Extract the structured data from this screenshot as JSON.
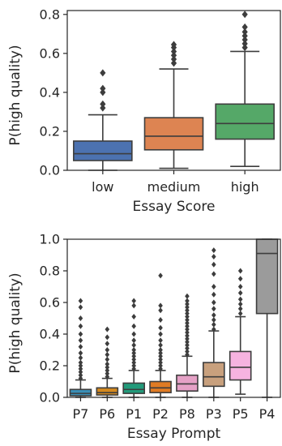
{
  "chart_data": [
    {
      "type": "box",
      "xlabel": "Essay Score",
      "ylabel": "P(high quality)",
      "ylim": [
        0,
        0.82
      ],
      "yticks": [
        "0.0",
        "0.2",
        "0.4",
        "0.6",
        "0.8"
      ],
      "ytick_values": [
        0,
        0.2,
        0.4,
        0.6,
        0.8
      ],
      "grid": false,
      "categories": [
        "low",
        "medium",
        "high"
      ],
      "colors": [
        "#4c72b0",
        "#dd8452",
        "#55a868"
      ],
      "boxes": [
        {
          "whisker_low": 0.0,
          "q1": 0.05,
          "median": 0.085,
          "q3": 0.15,
          "whisker_high": 0.285,
          "outliers": [
            0.32,
            0.34,
            0.4,
            0.42,
            0.5
          ]
        },
        {
          "whisker_low": 0.01,
          "q1": 0.105,
          "median": 0.175,
          "q3": 0.27,
          "whisker_high": 0.52,
          "outliers": [
            0.55,
            0.57,
            0.59,
            0.61,
            0.63,
            0.645
          ]
        },
        {
          "whisker_low": 0.02,
          "q1": 0.16,
          "median": 0.24,
          "q3": 0.34,
          "whisker_high": 0.61,
          "outliers": [
            0.63,
            0.65,
            0.67,
            0.69,
            0.71,
            0.735,
            0.8
          ]
        }
      ]
    },
    {
      "type": "box",
      "xlabel": "Essay Prompt",
      "ylabel": "P(high quality)",
      "ylim": [
        0,
        1.0
      ],
      "yticks": [
        "0.0",
        "0.2",
        "0.4",
        "0.6",
        "0.8",
        "1.0"
      ],
      "ytick_values": [
        0,
        0.2,
        0.4,
        0.6,
        0.8,
        1.0
      ],
      "grid": false,
      "categories": [
        "P7",
        "P6",
        "P1",
        "P2",
        "P8",
        "P3",
        "P5",
        "P4"
      ],
      "colors": [
        "#3a8fb7",
        "#d4891f",
        "#229a7a",
        "#e07b23",
        "#e5a1c6",
        "#c8a07d",
        "#f6b3e0",
        "#9b9b9b"
      ],
      "boxes": [
        {
          "whisker_low": 0.0,
          "q1": 0.01,
          "median": 0.025,
          "q3": 0.05,
          "whisker_high": 0.11,
          "outliers": [
            0.12,
            0.14,
            0.16,
            0.18,
            0.2,
            0.22,
            0.25,
            0.28,
            0.32,
            0.36,
            0.4,
            0.45,
            0.5,
            0.57,
            0.61
          ]
        },
        {
          "whisker_low": 0.0,
          "q1": 0.015,
          "median": 0.03,
          "q3": 0.06,
          "whisker_high": 0.12,
          "outliers": [
            0.13,
            0.15,
            0.17,
            0.19,
            0.21,
            0.24,
            0.27,
            0.3,
            0.34,
            0.38,
            0.43
          ]
        },
        {
          "whisker_low": 0.0,
          "q1": 0.025,
          "median": 0.05,
          "q3": 0.09,
          "whisker_high": 0.17,
          "outliers": [
            0.18,
            0.2,
            0.22,
            0.24,
            0.26,
            0.28,
            0.3,
            0.33,
            0.36,
            0.4,
            0.45,
            0.51,
            0.58,
            0.61
          ]
        },
        {
          "whisker_low": 0.0,
          "q1": 0.03,
          "median": 0.06,
          "q3": 0.1,
          "whisker_high": 0.17,
          "outliers": [
            0.18,
            0.2,
            0.22,
            0.24,
            0.26,
            0.28,
            0.3,
            0.33,
            0.36,
            0.4,
            0.44,
            0.49,
            0.55,
            0.58,
            0.77
          ]
        },
        {
          "whisker_low": 0.0,
          "q1": 0.04,
          "median": 0.085,
          "q3": 0.14,
          "whisker_high": 0.26,
          "outliers": [
            0.27,
            0.29,
            0.31,
            0.33,
            0.35,
            0.37,
            0.39,
            0.41,
            0.43,
            0.45,
            0.47,
            0.49,
            0.51,
            0.53,
            0.55,
            0.57,
            0.59,
            0.61,
            0.64
          ]
        },
        {
          "whisker_low": 0.0,
          "q1": 0.07,
          "median": 0.13,
          "q3": 0.22,
          "whisker_high": 0.42,
          "outliers": [
            0.43,
            0.46,
            0.49,
            0.52,
            0.56,
            0.6,
            0.65,
            0.7,
            0.78,
            0.84,
            0.89,
            0.93
          ]
        },
        {
          "whisker_low": 0.02,
          "q1": 0.11,
          "median": 0.19,
          "q3": 0.29,
          "whisker_high": 0.51,
          "outliers": [
            0.53,
            0.56,
            0.59,
            0.62,
            0.66,
            0.7,
            0.75,
            0.8
          ]
        },
        {
          "whisker_low": 0.0,
          "q1": 0.53,
          "median": 0.91,
          "q3": 1.0,
          "whisker_high": 1.0,
          "outliers": []
        }
      ]
    }
  ]
}
